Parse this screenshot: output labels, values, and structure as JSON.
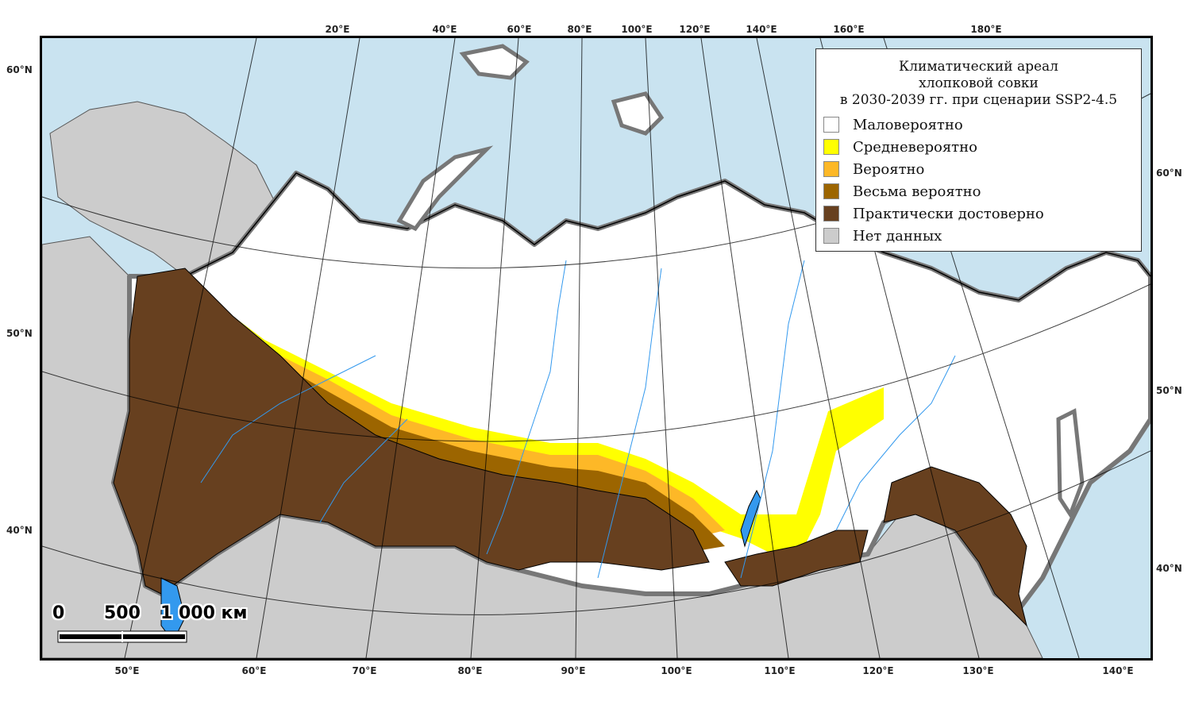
{
  "map": {
    "title_lines": [
      "Климатический ареал",
      "хлопковой совки",
      "в 2030-2039 гг. при сценарии SSP2-4.5"
    ],
    "legend": [
      {
        "label": "Маловероятно",
        "color": "#ffffff"
      },
      {
        "label": "Средневероятно",
        "color": "#ffff00"
      },
      {
        "label": "Вероятно",
        "color": "#fdb827"
      },
      {
        "label": "Весьма вероятно",
        "color": "#9c6500"
      },
      {
        "label": "Практически достоверно",
        "color": "#67401f"
      },
      {
        "label": "Нет данных",
        "color": "#cccccc"
      }
    ],
    "colors": {
      "water": "#c9e3f0",
      "land_outside": "#cccccc",
      "rivers": "#3399ee",
      "borders": "#000000",
      "coast_halo": "#888888"
    },
    "longitude_top": [
      "20°E",
      "40°E",
      "60°E",
      "80°E",
      "100°E",
      "120°E",
      "140°E",
      "160°E",
      "180°E"
    ],
    "longitude_bottom": [
      "50°E",
      "60°E",
      "70°E",
      "80°E",
      "90°E",
      "100°E",
      "110°E",
      "120°E",
      "130°E",
      "140°E"
    ],
    "latitude_left": [
      "60°N",
      "50°N",
      "40°N"
    ],
    "latitude_right": [
      "60°N",
      "50°N",
      "40°N"
    ],
    "scale": {
      "zero": "0",
      "mid": "500",
      "end": "1 000 км"
    }
  }
}
